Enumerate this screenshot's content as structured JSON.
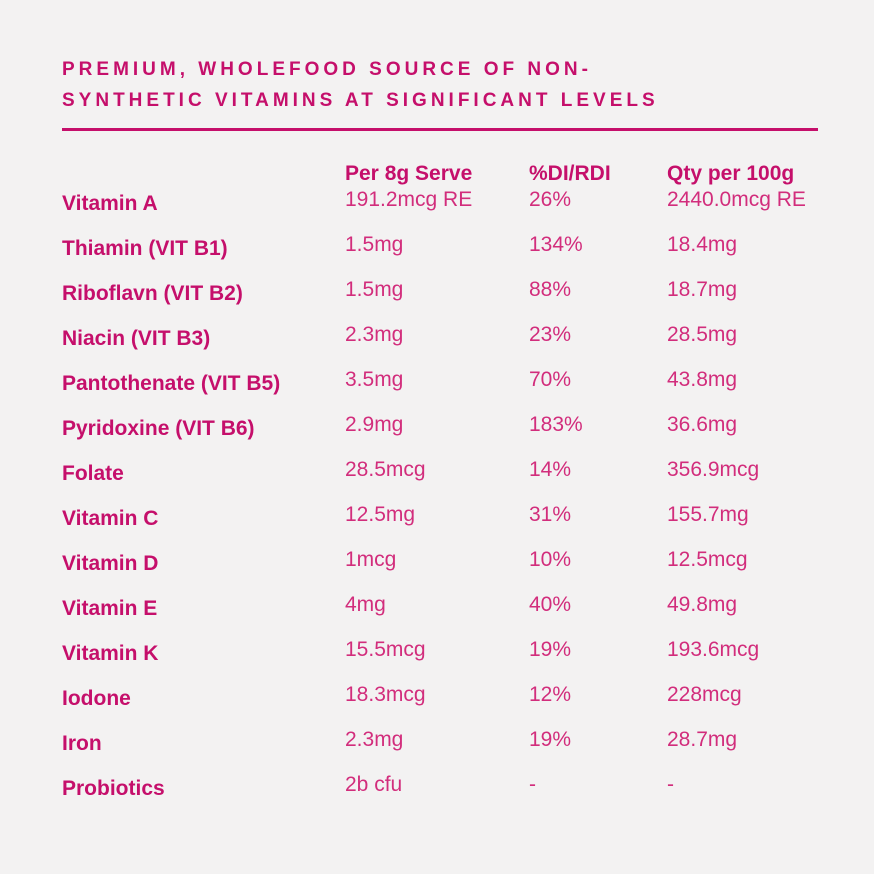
{
  "colors": {
    "background": "#f3f2f2",
    "heading_and_labels": "#c50f6b",
    "values": "#d22d7c"
  },
  "header": {
    "title_line1": "PREMIUM, WHOLEFOOD SOURCE OF NON-",
    "title_line2": "SYNTHETIC VITAMINS AT SIGNIFICANT LEVELS"
  },
  "table": {
    "columns": [
      "Per 8g Serve",
      "%DI/RDI",
      "Qty per 100g"
    ],
    "rows": [
      {
        "label": "Vitamin A",
        "per_serve": "191.2mcg RE",
        "di_rdi": "26%",
        "per_100g": "2440.0mcg RE"
      },
      {
        "label": "Thiamin (VIT B1)",
        "per_serve": "1.5mg",
        "di_rdi": "134%",
        "per_100g": "18.4mg"
      },
      {
        "label": "Riboflavn (VIT B2)",
        "per_serve": "1.5mg",
        "di_rdi": "88%",
        "per_100g": "18.7mg"
      },
      {
        "label": "Niacin (VIT B3)",
        "per_serve": "2.3mg",
        "di_rdi": "23%",
        "per_100g": "28.5mg"
      },
      {
        "label": "Pantothenate (VIT B5)",
        "per_serve": "3.5mg",
        "di_rdi": "70%",
        "per_100g": "43.8mg"
      },
      {
        "label": "Pyridoxine (VIT B6)",
        "per_serve": "2.9mg",
        "di_rdi": "183%",
        "per_100g": "36.6mg"
      },
      {
        "label": "Folate",
        "per_serve": "28.5mcg",
        "di_rdi": "14%",
        "per_100g": "356.9mcg"
      },
      {
        "label": "Vitamin C",
        "per_serve": "12.5mg",
        "di_rdi": "31%",
        "per_100g": "155.7mg"
      },
      {
        "label": "Vitamin D",
        "per_serve": "1mcg",
        "di_rdi": "10%",
        "per_100g": "12.5mcg"
      },
      {
        "label": "Vitamin E",
        "per_serve": "4mg",
        "di_rdi": "40%",
        "per_100g": "49.8mg"
      },
      {
        "label": "Vitamin K",
        "per_serve": "15.5mcg",
        "di_rdi": "19%",
        "per_100g": "193.6mcg"
      },
      {
        "label": "Iodone",
        "per_serve": "18.3mcg",
        "di_rdi": "12%",
        "per_100g": "228mcg"
      },
      {
        "label": "Iron",
        "per_serve": "2.3mg",
        "di_rdi": "19%",
        "per_100g": "28.7mg"
      },
      {
        "label": "Probiotics",
        "per_serve": "2b cfu",
        "di_rdi": "-",
        "per_100g": "-"
      }
    ]
  }
}
